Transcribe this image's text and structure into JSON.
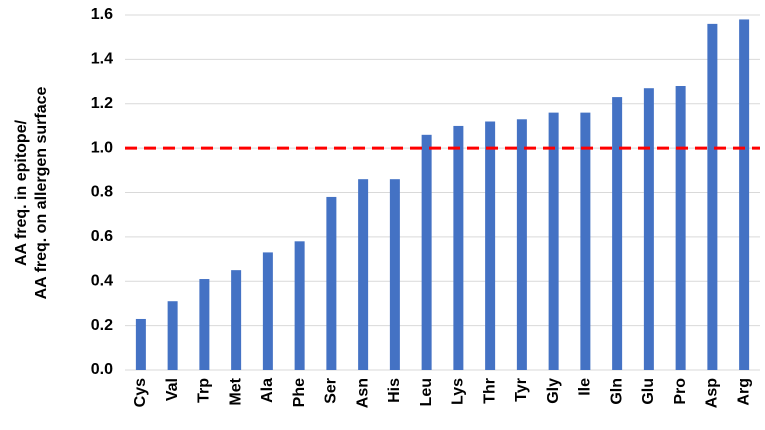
{
  "chart_data": {
    "type": "bar",
    "y_label": [
      "AA freq. in epitope/",
      "AA freq. on allergen surface"
    ],
    "categories": [
      "Cys",
      "Val",
      "Trp",
      "Met",
      "Ala",
      "Phe",
      "Ser",
      "Asn",
      "His",
      "Leu",
      "Lys",
      "Thr",
      "Tyr",
      "Gly",
      "Ile",
      "Gln",
      "Glu",
      "Pro",
      "Asp",
      "Arg"
    ],
    "values": [
      0.23,
      0.31,
      0.41,
      0.45,
      0.53,
      0.58,
      0.78,
      0.86,
      0.86,
      1.06,
      1.1,
      1.12,
      1.13,
      1.16,
      1.16,
      1.23,
      1.27,
      1.28,
      1.56,
      1.58
    ],
    "color": "#4472c4",
    "ylim": [
      0,
      1.6
    ],
    "yticks": [
      {
        "value": 0,
        "label": "0.0"
      },
      0.2,
      0.4,
      0.6,
      0.8,
      {
        "value": 1,
        "label": "1.0"
      },
      1.2,
      1.4,
      1.6
    ],
    "grid": true,
    "reference_line": {
      "value": 1,
      "color": "#ff0000"
    }
  }
}
